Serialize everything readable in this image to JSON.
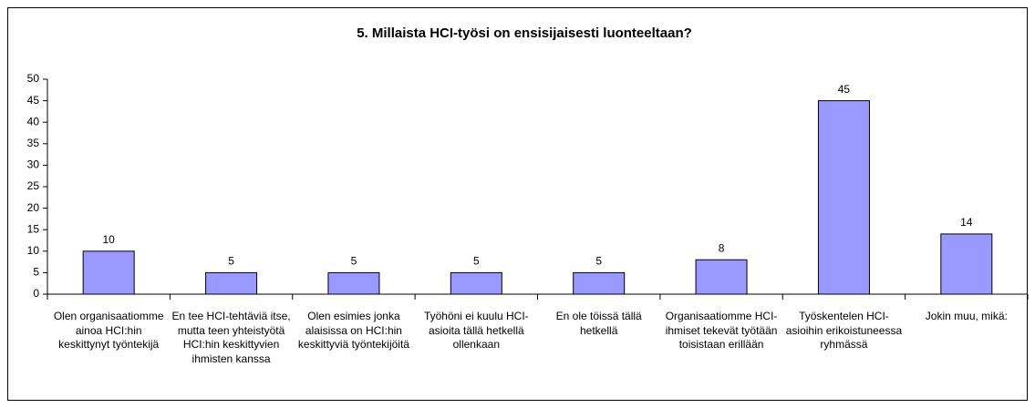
{
  "chart_data": {
    "type": "bar",
    "title": "5. Millaista HCI-työsi on ensisijaisesti luonteeltaan?",
    "categories": [
      "Olen organisaatiomme ainoa HCI:hin keskittynyt työntekijä",
      "En tee HCI-tehtäviä itse, mutta teen yhteistyötä HCI:hin keskittyvien ihmisten kanssa",
      "Olen esimies jonka alaisissa on HCI:hin keskittyviä työntekijöitä",
      "Työhöni ei kuulu HCI-asioita tällä hetkellä ollenkaan",
      "En ole töissä tällä hetkellä",
      "Organisaatiomme HCI-ihmiset tekevät työtään toisistaan erillään",
      "Työskentelen HCI-asioihin erikoistuneessa ryhmässä",
      "Jokin muu, mikä:"
    ],
    "values": [
      10,
      5,
      5,
      5,
      5,
      8,
      45,
      14
    ],
    "color": "#9999ff",
    "ylim": [
      0,
      50
    ],
    "yticks": [
      0,
      5,
      10,
      15,
      20,
      25,
      30,
      35,
      40,
      45,
      50
    ],
    "grid": false
  }
}
